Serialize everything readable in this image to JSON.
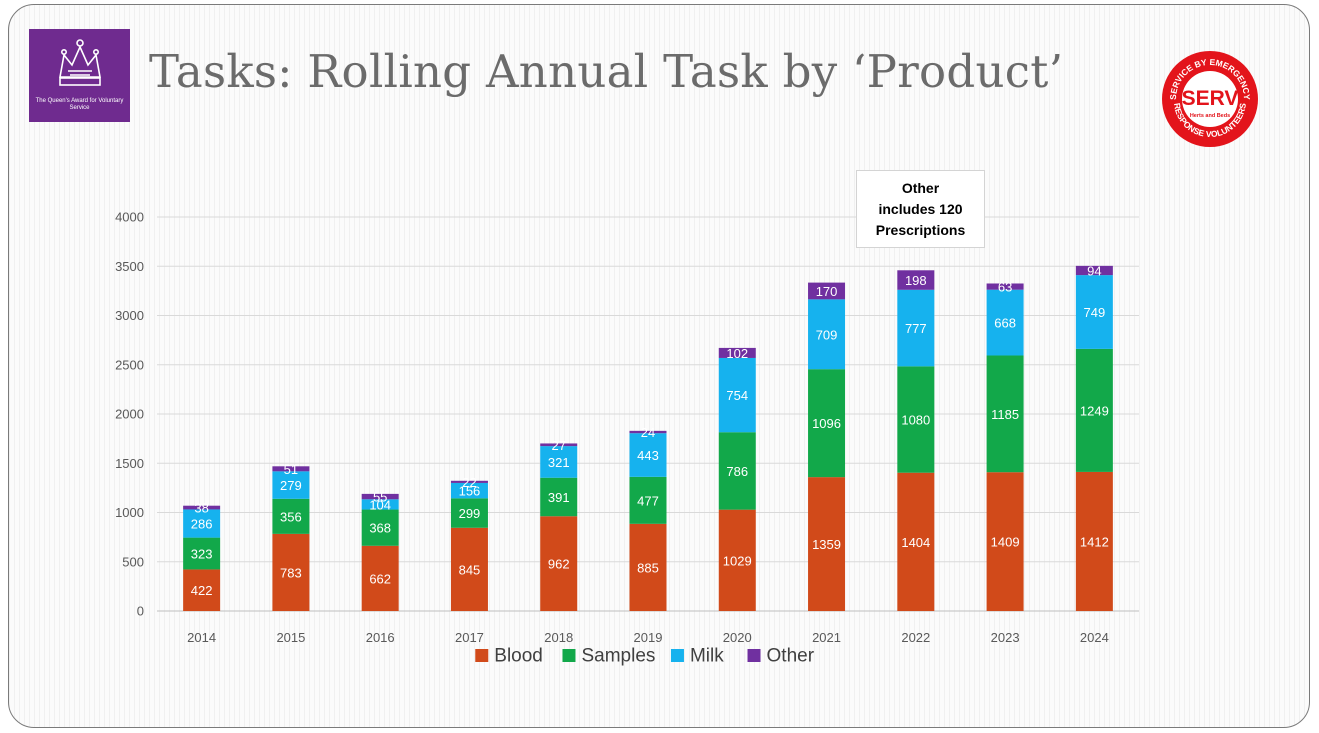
{
  "slide": {
    "title": "Tasks: Rolling Annual Task by ‘Product’",
    "award_logo": {
      "text": "The Queen's Award for Voluntary Service",
      "color": "#6f2b8f"
    },
    "serv_logo": {
      "text_top": "SERVICE BY EMERGENCY",
      "text_center": "SERV",
      "text_sub": "Herts and Beds",
      "text_bottom": "RESPONSE VOLUNTEERS",
      "color": "#e3141b"
    },
    "annotation": "Other\nincludes 120\nPrescriptions"
  },
  "chart_data": {
    "type": "bar",
    "stacked": true,
    "categories": [
      "2014",
      "2015",
      "2016",
      "2017",
      "2018",
      "2019",
      "2020",
      "2021",
      "2022",
      "2023",
      "2024"
    ],
    "series": [
      {
        "name": "Blood",
        "color": "#d14a1a",
        "values": [
          422,
          783,
          662,
          845,
          962,
          885,
          1029,
          1359,
          1404,
          1409,
          1412
        ]
      },
      {
        "name": "Samples",
        "color": "#12a84a",
        "values": [
          323,
          356,
          368,
          299,
          391,
          477,
          786,
          1096,
          1080,
          1185,
          1249
        ]
      },
      {
        "name": "Milk",
        "color": "#16b2ee",
        "values": [
          286,
          279,
          104,
          156,
          321,
          443,
          754,
          709,
          777,
          668,
          749
        ]
      },
      {
        "name": "Other",
        "color": "#7030a0",
        "values": [
          38,
          51,
          55,
          22,
          27,
          24,
          102,
          170,
          198,
          63,
          94
        ]
      }
    ],
    "ylim": [
      0,
      4000
    ],
    "yticks": [
      0,
      500,
      1000,
      1500,
      2000,
      2500,
      3000,
      3500,
      4000
    ],
    "grid": true,
    "legend": "bottom",
    "title": "",
    "xlabel": "",
    "ylabel": ""
  }
}
